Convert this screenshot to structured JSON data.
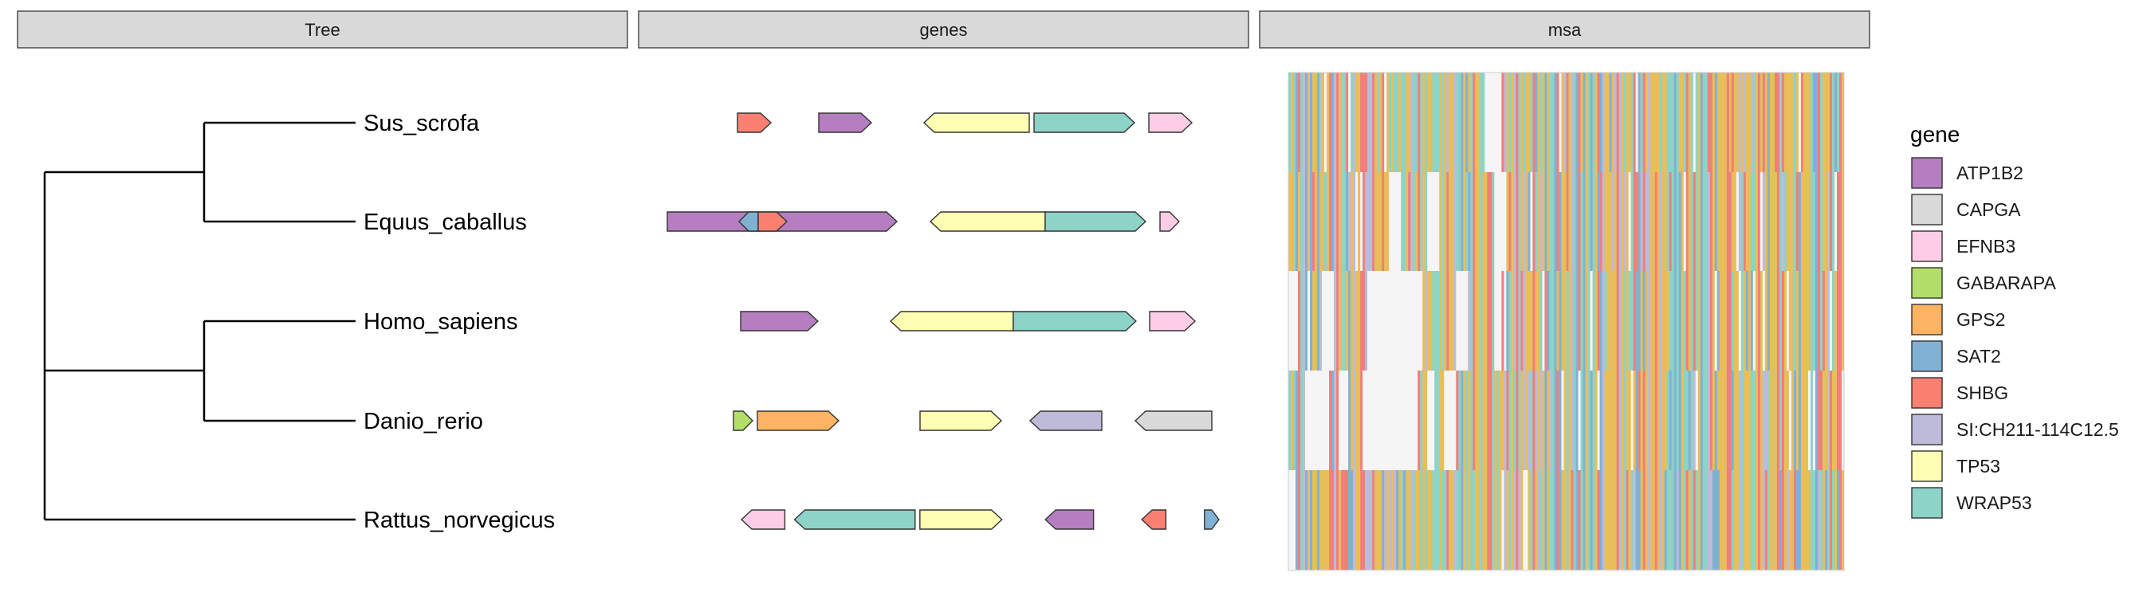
{
  "panels": {
    "tree": "Tree",
    "genes": "genes",
    "msa": "msa"
  },
  "legend": {
    "title": "gene",
    "items": [
      {
        "gene": "ATP1B2",
        "color": "#B57EC0"
      },
      {
        "gene": "CAPGA",
        "color": "#D9D9D9"
      },
      {
        "gene": "EFNB3",
        "color": "#FCCDE5"
      },
      {
        "gene": "GABARAPA",
        "color": "#B3DE69"
      },
      {
        "gene": "GPS2",
        "color": "#FDB462"
      },
      {
        "gene": "SAT2",
        "color": "#80B1D3"
      },
      {
        "gene": "SHBG",
        "color": "#FB8072"
      },
      {
        "gene": "SI:CH211-114C12.5",
        "color": "#BEBADA"
      },
      {
        "gene": "TP53",
        "color": "#FFFFB3"
      },
      {
        "gene": "WRAP53",
        "color": "#8DD3C7"
      }
    ]
  },
  "chart_data": {
    "type": "gene-arrow-map with phylogenetic tree and multiple sequence alignment",
    "species": [
      "Sus_scrofa",
      "Equus_caballus",
      "Homo_sapiens",
      "Danio_rerio",
      "Rattus_norvegicus"
    ],
    "tree": {
      "clades": [
        {
          "members": [
            "Sus_scrofa",
            "Equus_caballus"
          ]
        },
        {
          "members": [
            "Homo_sapiens",
            "Danio_rerio"
          ]
        },
        {
          "members": [
            "Rattus_norvegicus"
          ]
        }
      ]
    },
    "genes": {
      "Sus_scrofa": [
        {
          "gene": "SHBG",
          "start": 0.0,
          "end": 0.07,
          "strand": 1
        },
        {
          "gene": "ATP1B2",
          "start": 0.17,
          "end": 0.28,
          "strand": 1
        },
        {
          "gene": "TP53",
          "start": 0.39,
          "end": 0.61,
          "strand": -1
        },
        {
          "gene": "WRAP53",
          "start": 0.62,
          "end": 0.83,
          "strand": 1
        },
        {
          "gene": "EFNB3",
          "start": 0.86,
          "end": 0.95,
          "strand": 1
        }
      ],
      "Equus_caballus": [
        {
          "gene": "ATP1B2",
          "start": 0.0,
          "end": 0.48,
          "strand": 1
        },
        {
          "gene": "SAT2",
          "start": 0.15,
          "end": 0.19,
          "strand": -1
        },
        {
          "gene": "SHBG",
          "start": 0.19,
          "end": 0.25,
          "strand": 1
        },
        {
          "gene": "TP53",
          "start": 0.55,
          "end": 0.79,
          "strand": -1
        },
        {
          "gene": "WRAP53",
          "start": 0.79,
          "end": 1.0,
          "strand": 1
        },
        {
          "gene": "EFNB3",
          "start": 1.03,
          "end": 1.07,
          "strand": 1
        }
      ],
      "Homo_sapiens": [
        {
          "gene": "ATP1B2",
          "start": 0.0,
          "end": 0.17,
          "strand": 1
        },
        {
          "gene": "TP53",
          "start": 0.33,
          "end": 0.6,
          "strand": -1
        },
        {
          "gene": "WRAP53",
          "start": 0.6,
          "end": 0.87,
          "strand": 1
        },
        {
          "gene": "EFNB3",
          "start": 0.9,
          "end": 1.0,
          "strand": 1
        }
      ],
      "Danio_rerio": [
        {
          "gene": "GABARAPA",
          "start": 0.0,
          "end": 0.04,
          "strand": 1
        },
        {
          "gene": "GPS2",
          "start": 0.05,
          "end": 0.22,
          "strand": 1
        },
        {
          "gene": "TP53",
          "start": 0.39,
          "end": 0.56,
          "strand": 1
        },
        {
          "gene": "SI:CH211-114C12.5",
          "start": 0.62,
          "end": 0.77,
          "strand": -1
        },
        {
          "gene": "CAPGA",
          "start": 0.84,
          "end": 1.0,
          "strand": -1
        }
      ],
      "Rattus_norvegicus": [
        {
          "gene": "EFNB3",
          "start": 0.0,
          "end": 0.09,
          "strand": -1
        },
        {
          "gene": "WRAP53",
          "start": 0.11,
          "end": 0.36,
          "strand": -1
        },
        {
          "gene": "TP53",
          "start": 0.37,
          "end": 0.54,
          "strand": 1
        },
        {
          "gene": "ATP1B2",
          "start": 0.63,
          "end": 0.73,
          "strand": -1
        },
        {
          "gene": "SHBG",
          "start": 0.83,
          "end": 0.88,
          "strand": -1
        },
        {
          "gene": "SAT2",
          "start": 0.96,
          "end": 0.99,
          "strand": 1
        }
      ]
    },
    "msa": {
      "palette": [
        "#E8BE5A",
        "#8DD3C7",
        "#F07F7A",
        "#BEBADA",
        "#80B1D3",
        "#F5F5F5"
      ],
      "gap_fraction_by_species": [
        0.06,
        0.08,
        0.22,
        0.24,
        0.05
      ]
    }
  }
}
